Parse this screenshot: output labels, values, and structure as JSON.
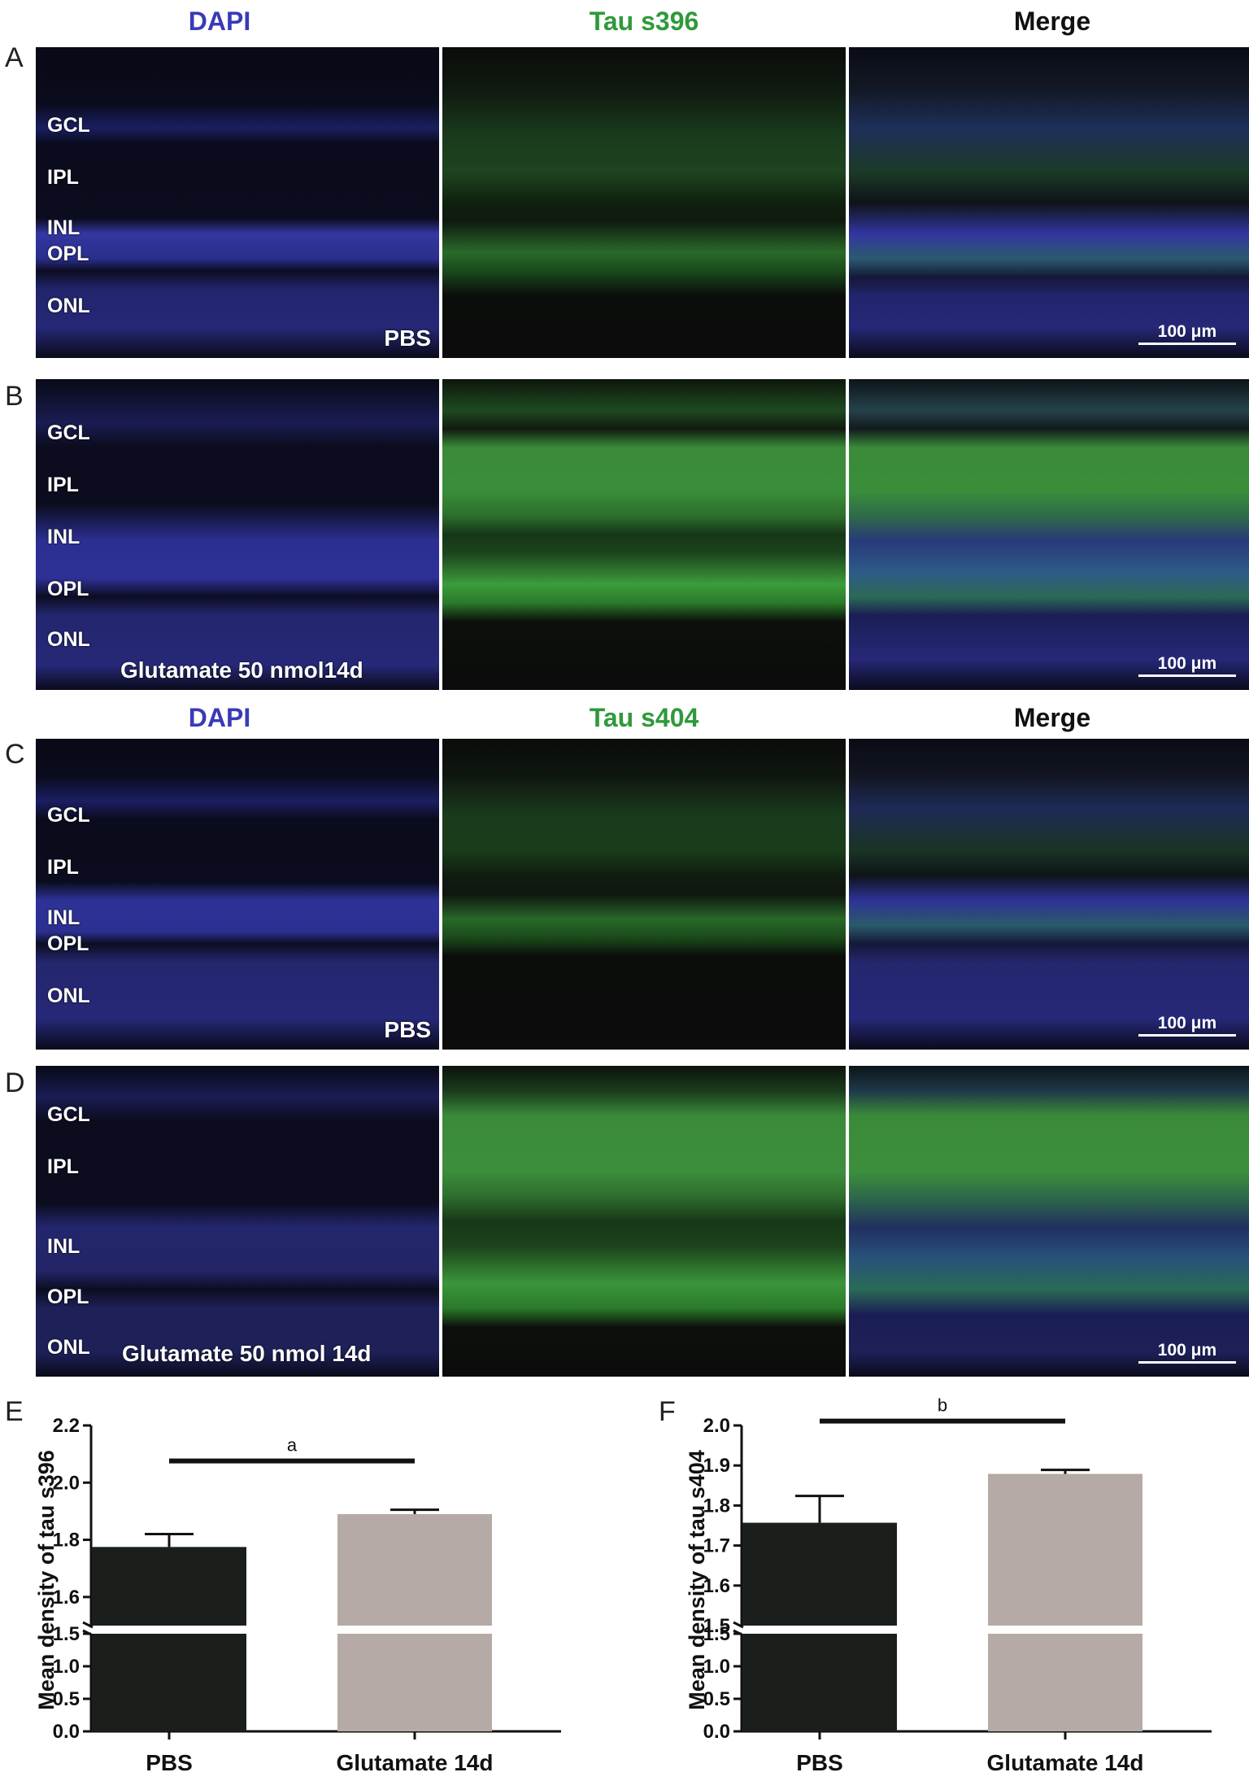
{
  "column_headers": {
    "row1": {
      "dapi": "DAPI",
      "tau": "Tau s396",
      "merge": "Merge"
    },
    "row2": {
      "dapi": "DAPI",
      "tau": "Tau s404",
      "merge": "Merge"
    }
  },
  "colors": {
    "dapi": "#3a3ab8",
    "tau": "#2e9a3a",
    "merge": "#111111",
    "pbs_bar": "#1a1f1c",
    "glu_bar": "#b5aaa5"
  },
  "panel_letters": [
    "A",
    "B",
    "C",
    "D",
    "E",
    "F"
  ],
  "layers_top": [
    "GCL",
    "IPL",
    "INL",
    "OPL",
    "ONL"
  ],
  "conditions": {
    "pbs": "PBS",
    "glutamate": "Glutamate 50 nmol 14d",
    "glutamate_b": "Glutamate 50 nmol14d"
  },
  "scale_bar": "100 μm",
  "chart_data": [
    {
      "type": "bar",
      "panel": "E",
      "categories": [
        "PBS",
        "Glutamate 14d"
      ],
      "values": [
        1.775,
        1.89
      ],
      "errors": [
        0.045,
        0.015
      ],
      "ylabel": "Mean density of tau s396",
      "axis_break": {
        "lower": [
          0.0,
          1.5
        ],
        "upper": [
          1.5,
          2.2
        ]
      },
      "yticks_lower": [
        "0.0",
        "0.5",
        "1.0",
        "1.5"
      ],
      "yticks_upper": [
        "1.6",
        "1.8",
        "2.0",
        "2.2"
      ],
      "significance": "a"
    },
    {
      "type": "bar",
      "panel": "F",
      "categories": [
        "PBS",
        "Glutamate 14d"
      ],
      "values": [
        1.757,
        1.879
      ],
      "errors": [
        0.067,
        0.01
      ],
      "ylabel": "Mean density of tau s404",
      "axis_break": {
        "lower": [
          0.0,
          1.5
        ],
        "upper": [
          1.5,
          2.0
        ]
      },
      "yticks_lower": [
        "0.0",
        "0.5",
        "1.0",
        "1.5"
      ],
      "yticks_upper": [
        "1.5",
        "1.6",
        "1.7",
        "1.8",
        "1.9",
        "2.0"
      ],
      "significance": "b"
    }
  ]
}
